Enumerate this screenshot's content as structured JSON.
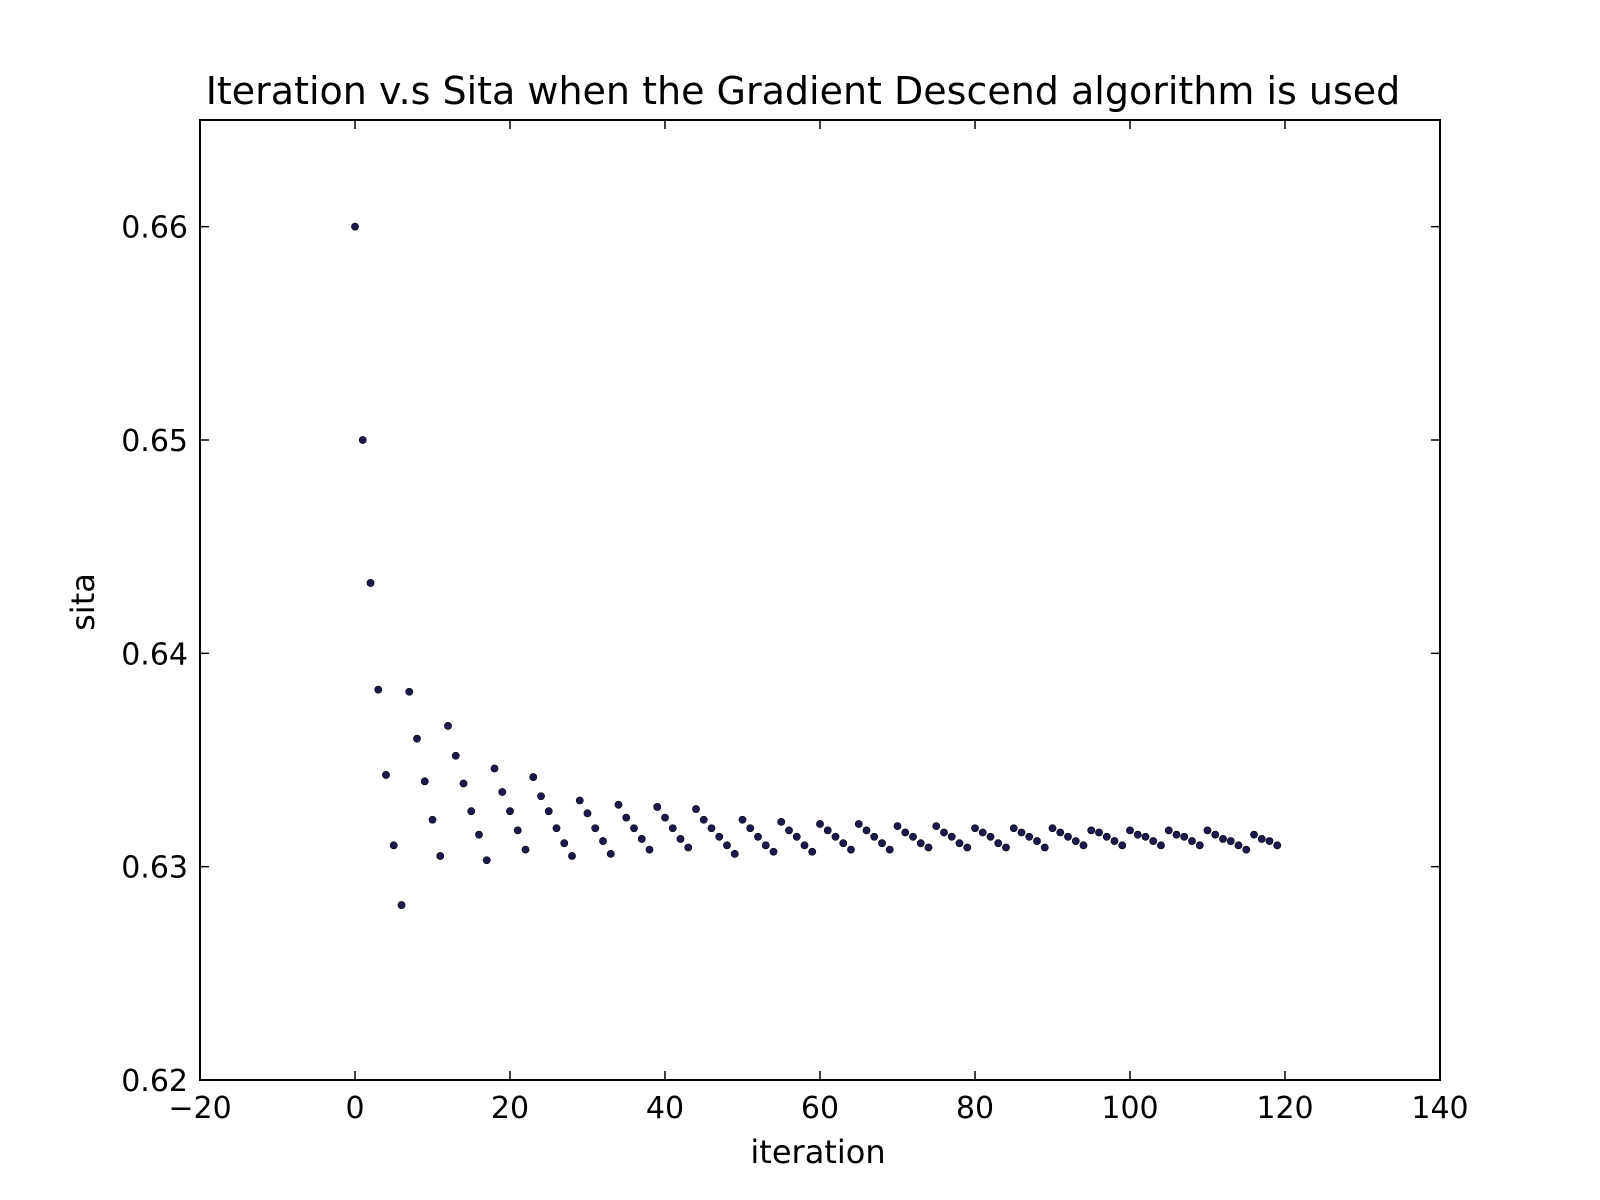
{
  "chart_data": {
    "type": "scatter",
    "title": "Iteration v.s Sita when the Gradient Descend algorithm is used",
    "xlabel": "iteration",
    "ylabel": "sita",
    "xlim": [
      -20,
      140
    ],
    "ylim": [
      0.62,
      0.665
    ],
    "xticks": [
      -20,
      0,
      20,
      40,
      60,
      80,
      100,
      120,
      140
    ],
    "xtick_labels": [
      "−20",
      "0",
      "20",
      "40",
      "60",
      "80",
      "100",
      "120",
      "140"
    ],
    "yticks": [
      0.62,
      0.63,
      0.64,
      0.65,
      0.66
    ],
    "ytick_labels": [
      "0.62",
      "0.63",
      "0.64",
      "0.65",
      "0.66"
    ],
    "grid": false,
    "marker_color": "#1a1a4d",
    "series": [
      {
        "x": [
          0,
          1,
          2,
          3,
          4,
          5,
          6,
          7,
          8,
          9,
          10,
          11,
          12,
          13,
          14,
          15,
          16,
          17,
          18,
          19,
          20,
          21,
          22,
          23,
          24,
          25,
          26,
          27,
          28,
          29,
          30,
          31,
          32,
          33,
          34,
          35,
          36,
          37,
          38,
          39,
          40,
          41,
          42,
          43,
          44,
          45,
          46,
          47,
          48,
          49,
          50,
          51,
          52,
          53,
          54,
          55,
          56,
          57,
          58,
          59,
          60,
          61,
          62,
          63,
          64,
          65,
          66,
          67,
          68,
          69,
          70,
          71,
          72,
          73,
          74,
          75,
          76,
          77,
          78,
          79,
          80,
          81,
          82,
          83,
          84,
          85,
          86,
          87,
          88,
          89,
          90,
          91,
          92,
          93,
          94,
          95,
          96,
          97,
          98,
          99,
          100,
          101,
          102,
          103,
          104,
          105,
          106,
          107,
          108,
          109,
          110,
          111,
          112,
          113,
          114,
          115,
          116,
          117,
          118,
          119
        ],
        "y": [
          0.66,
          0.65,
          0.6433,
          0.6383,
          0.6343,
          0.631,
          0.6282,
          0.6382,
          0.636,
          0.634,
          0.6322,
          0.6305,
          0.6366,
          0.6352,
          0.6339,
          0.6326,
          0.6315,
          0.6303,
          0.6346,
          0.6335,
          0.6326,
          0.6317,
          0.6308,
          0.6342,
          0.6333,
          0.6326,
          0.6318,
          0.6311,
          0.6305,
          0.6331,
          0.6325,
          0.6318,
          0.6312,
          0.6306,
          0.6329,
          0.6323,
          0.6318,
          0.6313,
          0.6308,
          0.6328,
          0.6323,
          0.6318,
          0.6313,
          0.6309,
          0.6327,
          0.6322,
          0.6318,
          0.6314,
          0.631,
          0.6306,
          0.6322,
          0.6318,
          0.6314,
          0.631,
          0.6307,
          0.6321,
          0.6317,
          0.6314,
          0.631,
          0.6307,
          0.632,
          0.6317,
          0.6314,
          0.6311,
          0.6308,
          0.632,
          0.6317,
          0.6314,
          0.6311,
          0.6308,
          0.6319,
          0.6316,
          0.6314,
          0.6311,
          0.6309,
          0.6319,
          0.6316,
          0.6314,
          0.6311,
          0.6309,
          0.6318,
          0.6316,
          0.6314,
          0.6311,
          0.6309,
          0.6318,
          0.6316,
          0.6314,
          0.6312,
          0.6309,
          0.6318,
          0.6316,
          0.6314,
          0.6312,
          0.631,
          0.6317,
          0.6316,
          0.6314,
          0.6312,
          0.631,
          0.6317,
          0.6315,
          0.6314,
          0.6312,
          0.631,
          0.6317,
          0.6315,
          0.6314,
          0.6312,
          0.631,
          0.6317,
          0.6315,
          0.6313,
          0.6312,
          0.631,
          0.6308,
          0.6315,
          0.6313,
          0.6312,
          0.631
        ]
      }
    ]
  }
}
